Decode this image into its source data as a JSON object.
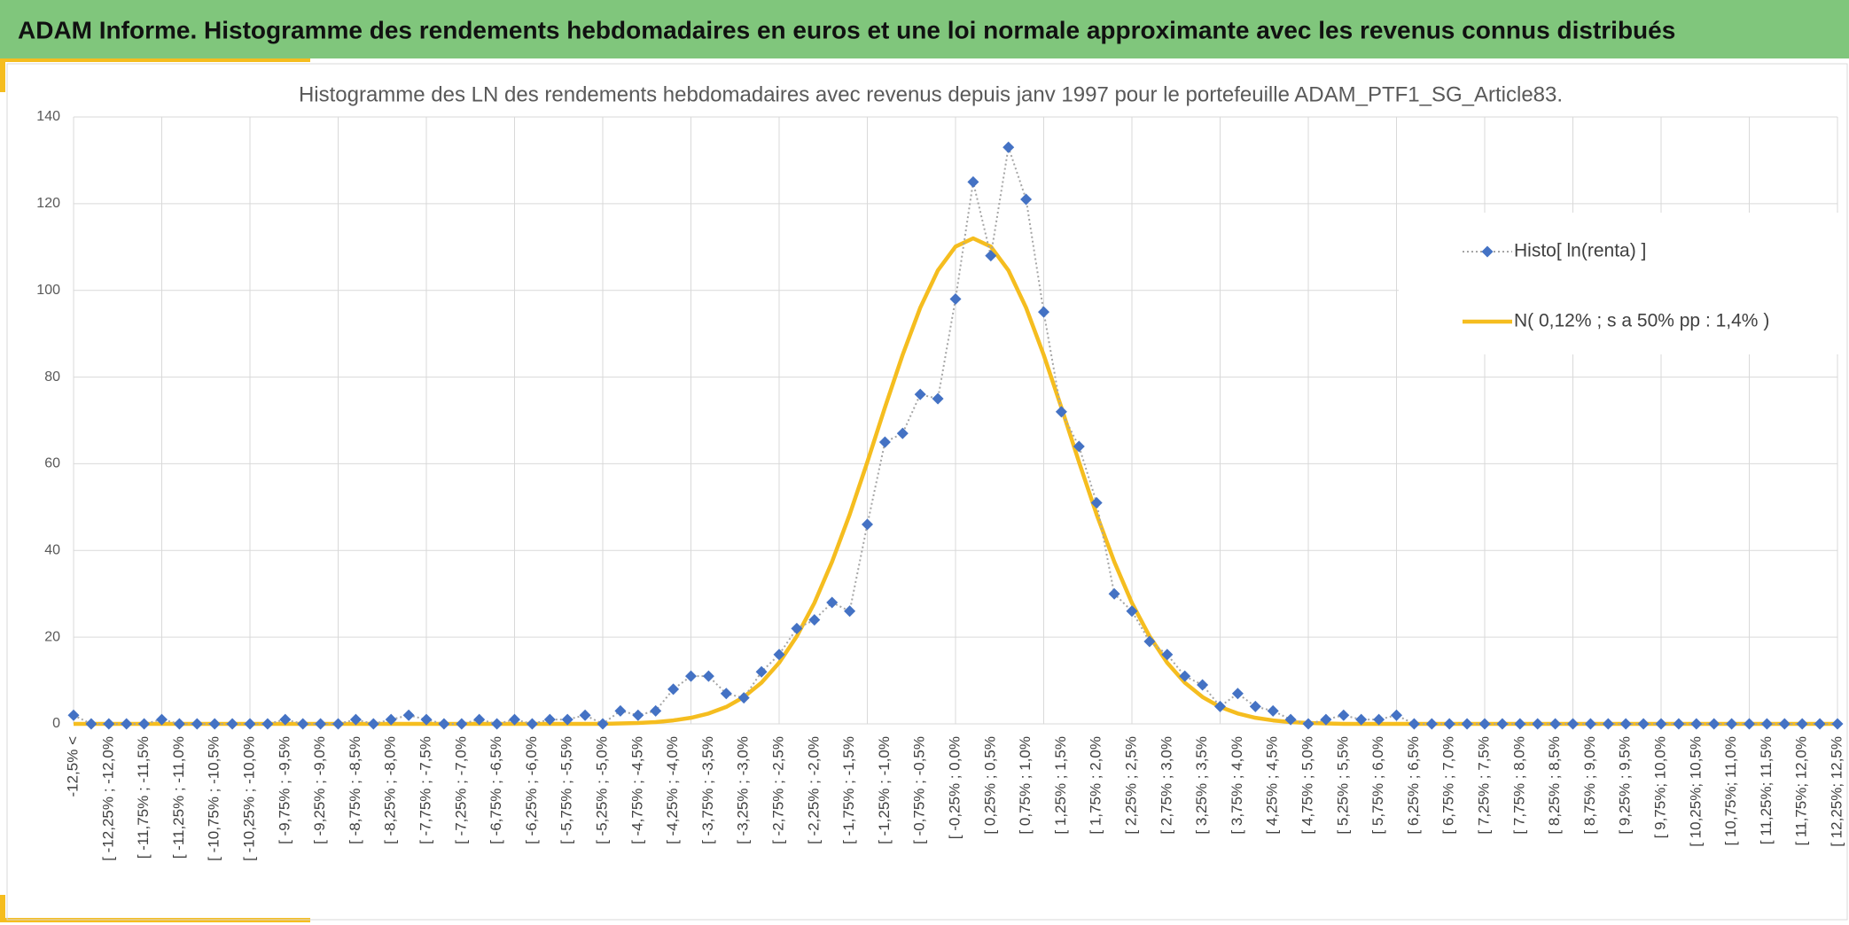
{
  "header": {
    "title": "ADAM Informe. Histogramme des rendements hebdomadaires en euros et une loi normale approximante avec les revenus connus distribués"
  },
  "chart_data": {
    "type": "line",
    "title": "Histogramme des LN des rendements hebdomadaires avec revenus depuis janv 1997 pour le portefeuille ADAM_PTF1_SG_Article83.",
    "categories": [
      "-12,5% <",
      null,
      "[ -12,25% ; -12,0%",
      null,
      "[ -11,75% ; -11,5%",
      null,
      "[ -11,25% ; -11,0%",
      null,
      "[ -10,75% ; -10,5%",
      null,
      "[ -10,25% ; -10,0%",
      null,
      "[ -9,75% ; -9,5%",
      null,
      "[ -9,25% ; -9,0%",
      null,
      "[ -8,75% ; -8,5%",
      null,
      "[ -8,25% ; -8,0%",
      null,
      "[ -7,75% ; -7,5%",
      null,
      "[ -7,25% ; -7,0%",
      null,
      "[ -6,75% ; -6,5%",
      null,
      "[ -6,25% ; -6,0%",
      null,
      "[ -5,75% ; -5,5%",
      null,
      "[ -5,25% ; -5,0%",
      null,
      "[ -4,75% ; -4,5%",
      null,
      "[ -4,25% ; -4,0%",
      null,
      "[ -3,75% ; -3,5%",
      null,
      "[ -3,25% ; -3,0%",
      null,
      "[ -2,75% ; -2,5%",
      null,
      "[ -2,25% ; -2,0%",
      null,
      "[ -1,75% ; -1,5%",
      null,
      "[ -1,25% ; -1,0%",
      null,
      "[ -0,75% ; -0,5%",
      null,
      "[ -0,25% ; 0,0%",
      null,
      "[ 0,25% ; 0,5%",
      null,
      "[ 0,75% ; 1,0%",
      null,
      "[ 1,25% ; 1,5%",
      null,
      "[ 1,75% ; 2,0%",
      null,
      "[ 2,25% ; 2,5%",
      null,
      "[ 2,75% ; 3,0%",
      null,
      "[ 3,25% ; 3,5%",
      null,
      "[ 3,75% ; 4,0%",
      null,
      "[ 4,25% ; 4,5%",
      null,
      "[ 4,75% ; 5,0%",
      null,
      "[ 5,25% ; 5,5%",
      null,
      "[ 5,75% ; 6,0%",
      null,
      "[ 6,25% ; 6,5%",
      null,
      "[ 6,75% ; 7,0%",
      null,
      "[ 7,25% ; 7,5%",
      null,
      "[ 7,75% ; 8,0%",
      null,
      "[ 8,25% ; 8,5%",
      null,
      "[ 8,75% ; 9,0%",
      null,
      "[ 9,25% ; 9,5%",
      null,
      "[ 9,75%; 10,0%",
      null,
      "[ 10,25%; 10,5%",
      null,
      "[ 10,75%; 11,0%",
      null,
      "[ 11,25%; 11,5%",
      null,
      "[ 11,75%; 12,0%",
      null,
      "[ 12,25%; 12,5%"
    ],
    "series": [
      {
        "name": "Histo[ ln(renta) ]",
        "color": "#4472c4",
        "line_color": "#a5a5a5",
        "values": [
          2,
          0,
          0,
          0,
          0,
          1,
          0,
          0,
          0,
          0,
          0,
          0,
          1,
          0,
          0,
          0,
          1,
          0,
          1,
          2,
          1,
          0,
          0,
          1,
          0,
          1,
          0,
          1,
          1,
          2,
          0,
          3,
          2,
          3,
          8,
          11,
          11,
          7,
          6,
          12,
          16,
          22,
          24,
          28,
          26,
          46,
          65,
          67,
          76,
          75,
          98,
          125,
          108,
          133,
          121,
          95,
          72,
          64,
          51,
          30,
          26,
          19,
          16,
          11,
          9,
          4,
          7,
          4,
          3,
          1,
          0,
          1,
          2,
          1,
          1,
          2,
          0,
          0,
          0,
          0,
          0,
          0,
          0,
          0,
          0,
          0,
          0,
          0,
          0,
          0,
          0,
          0,
          0,
          0,
          0,
          0,
          0,
          0,
          0,
          0,
          0
        ]
      },
      {
        "name": "N( 0,12% ; s a 50% pp : 1,4% )",
        "color": "#f5bd1f",
        "values": [
          0,
          0,
          0,
          0,
          0,
          0,
          0,
          0,
          0,
          0,
          0,
          0,
          0,
          0,
          0,
          0,
          0,
          0,
          0,
          0,
          0,
          0,
          0,
          0,
          0,
          0,
          0,
          0,
          0,
          0,
          0,
          0.1,
          0.2,
          0.4,
          0.8,
          1.4,
          2.4,
          3.9,
          6.2,
          9.5,
          14.1,
          20.2,
          27.9,
          37.4,
          48.3,
          60.4,
          73.0,
          85.1,
          96.0,
          104.6,
          110.1,
          112,
          110.1,
          104.6,
          96.0,
          85.1,
          73.0,
          60.4,
          48.3,
          37.4,
          27.9,
          20.2,
          14.1,
          9.5,
          6.2,
          3.9,
          2.4,
          1.4,
          0.8,
          0.4,
          0.2,
          0.1,
          0,
          0,
          0,
          0,
          0,
          0,
          0,
          0,
          0,
          0,
          0,
          0,
          0,
          0,
          0,
          0,
          0,
          0,
          0,
          0,
          0,
          0,
          0,
          0,
          0,
          0,
          0,
          0,
          0
        ]
      }
    ],
    "ylim": [
      0,
      140
    ],
    "yticks": [
      0,
      20,
      40,
      60,
      80,
      100,
      120,
      140
    ],
    "grid": true,
    "legend": "right"
  }
}
